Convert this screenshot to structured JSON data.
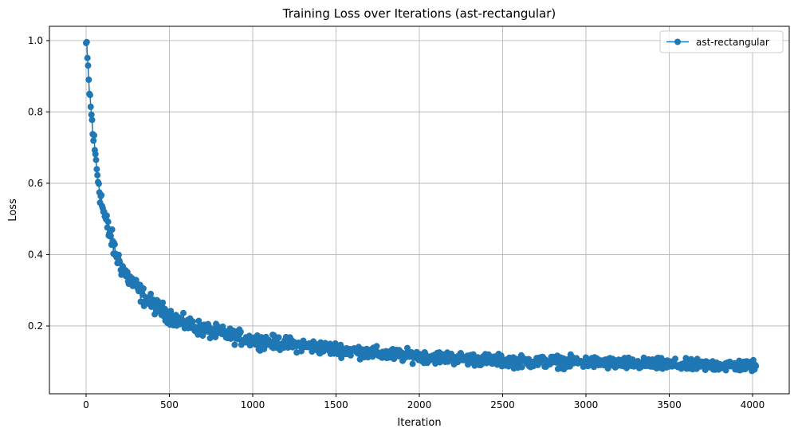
{
  "chart_data": {
    "type": "line",
    "title": "Training Loss over Iterations (ast-rectangular)",
    "xlabel": "Iteration",
    "ylabel": "Loss",
    "xlim": [
      -220,
      4220
    ],
    "ylim": [
      0.01,
      1.04
    ],
    "xticks": [
      0,
      500,
      1000,
      1500,
      2000,
      2500,
      3000,
      3500,
      4000
    ],
    "yticks": [
      0.2,
      0.4,
      0.6,
      0.8,
      1.0
    ],
    "xtick_labels": [
      "0",
      "500",
      "1000",
      "1500",
      "2000",
      "2500",
      "3000",
      "3500",
      "4000"
    ],
    "ytick_labels": [
      "0.2",
      "0.4",
      "0.6",
      "0.8",
      "1.0"
    ],
    "grid": true,
    "legend": {
      "placement": "top-right",
      "entries": [
        "ast-rectangular"
      ]
    },
    "series": [
      {
        "name": "ast-rectangular",
        "color": "#1f77b4",
        "marker": "circle",
        "line": true,
        "x": [
          0,
          10,
          20,
          30,
          40,
          50,
          60,
          70,
          80,
          90,
          100,
          120,
          140,
          160,
          180,
          200,
          220,
          240,
          260,
          280,
          300,
          330,
          360,
          400,
          450,
          500,
          550,
          600,
          650,
          700,
          800,
          900,
          1000,
          1100,
          1200,
          1300,
          1400,
          1500,
          1600,
          1700,
          1800,
          1900,
          2000,
          2200,
          2400,
          2600,
          2800,
          3000,
          3200,
          3400,
          3600,
          3800,
          4000,
          4020
        ],
        "values": [
          0.99,
          0.93,
          0.86,
          0.8,
          0.75,
          0.7,
          0.66,
          0.62,
          0.59,
          0.56,
          0.53,
          0.49,
          0.46,
          0.43,
          0.4,
          0.38,
          0.36,
          0.345,
          0.33,
          0.32,
          0.31,
          0.29,
          0.275,
          0.26,
          0.245,
          0.23,
          0.215,
          0.205,
          0.2,
          0.19,
          0.18,
          0.17,
          0.16,
          0.155,
          0.15,
          0.145,
          0.14,
          0.135,
          0.13,
          0.125,
          0.12,
          0.118,
          0.115,
          0.11,
          0.105,
          0.1,
          0.1,
          0.098,
          0.095,
          0.093,
          0.09,
          0.09,
          0.088,
          0.088
        ],
        "noise_amplitude": 0.025
      }
    ]
  }
}
